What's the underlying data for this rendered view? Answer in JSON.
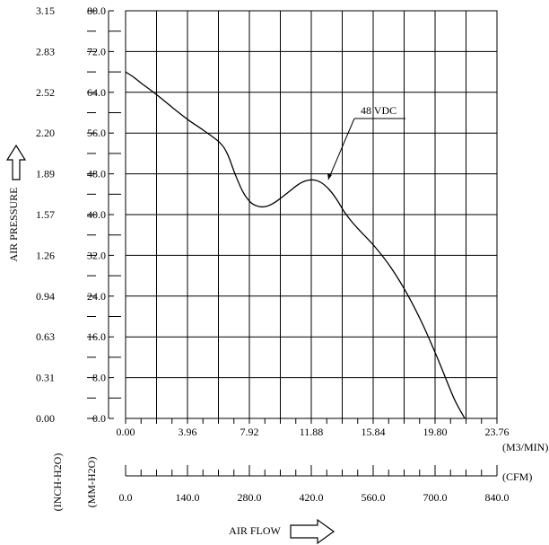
{
  "chart_data": {
    "type": "line",
    "title": "",
    "series": [
      {
        "name": "48 VDC",
        "x": [
          0.0,
          0.5,
          1.0,
          2.0,
          3.0,
          4.0,
          5.0,
          6.0,
          6.5,
          7.0,
          7.5,
          8.0,
          8.5,
          9.0,
          9.5,
          10.0,
          10.5,
          11.0,
          11.5,
          12.0,
          12.5,
          13.0,
          13.5,
          14.0,
          14.5,
          15.0,
          16.0,
          17.0,
          18.0,
          19.0,
          20.0,
          21.0,
          21.7
        ],
        "y": [
          68.0,
          67.0,
          65.8,
          63.5,
          61.0,
          58.6,
          56.5,
          54.2,
          52.0,
          48.0,
          44.5,
          42.4,
          41.6,
          41.6,
          42.3,
          43.4,
          44.6,
          45.8,
          46.6,
          46.8,
          46.3,
          45.0,
          43.0,
          40.5,
          38.5,
          36.8,
          33.5,
          29.5,
          24.5,
          18.5,
          11.5,
          4.0,
          0.0
        ]
      }
    ],
    "curve_label": "48 VDC",
    "x_primary": {
      "unit_label": "(M3/MIN)",
      "range": [
        0.0,
        23.76
      ],
      "tick_values": [
        0.0,
        3.96,
        7.92,
        11.88,
        15.84,
        19.8,
        23.76
      ],
      "tick_labels": [
        "0.00",
        "3.96",
        "7.92",
        "11.88",
        "15.84",
        "19.80",
        "23.76"
      ]
    },
    "x_secondary": {
      "unit_label": "(CFM)",
      "range": [
        0.0,
        840.0
      ],
      "tick_values": [
        0,
        140,
        280,
        420,
        560,
        700,
        840
      ],
      "tick_labels": [
        "0.0",
        "140.0",
        "280.0",
        "420.0",
        "560.0",
        "700.0",
        "840.0"
      ]
    },
    "y_primary": {
      "unit_label": "(MM-H2O)",
      "range": [
        0.0,
        80.0
      ],
      "tick_values": [
        0,
        8,
        16,
        24,
        32,
        40,
        48,
        56,
        64,
        72,
        80
      ],
      "tick_labels": [
        "0.0",
        "8.0",
        "16.0",
        "24.0",
        "32.0",
        "40.0",
        "48.0",
        "56.0",
        "64.0",
        "72.0",
        "80.0"
      ]
    },
    "y_secondary": {
      "unit_label": "(INCH-H2O)",
      "tick_labels": [
        "0.00",
        "0.31",
        "0.63",
        "0.94",
        "1.26",
        "1.57",
        "1.89",
        "2.20",
        "2.52",
        "2.83",
        "3.15"
      ]
    },
    "ylabel": "AIR PRESSURE",
    "xlabel": "AIR FLOW",
    "grid": true
  }
}
